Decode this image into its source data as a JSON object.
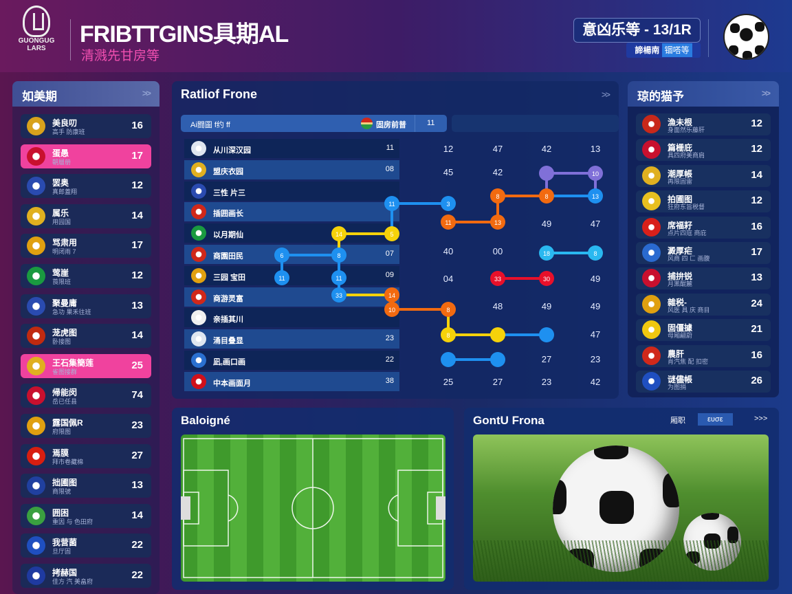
{
  "header": {
    "logo_text": [
      "GUONGUG",
      "LARS"
    ],
    "title": "FRIBTTGINS具期AL",
    "subtitle": "清溅先甘房等",
    "match_label": "意凶乐等 - 13/1R",
    "match_sub_a": "諦楊南",
    "match_sub_b": "锢嗒等",
    "ball_icon": "soccer-ball-icon"
  },
  "left_panel": {
    "title": "如美期",
    "items": [
      {
        "name": "美良叨",
        "sub": "高手 防康班",
        "value": "16",
        "flag": "#d8a21c",
        "hl": false
      },
      {
        "name": "蛋愚",
        "sub": "朝層册",
        "value": "17",
        "flag": "#c8102e",
        "hl": true
      },
      {
        "name": "罢奥",
        "sub": "真郎蓋翔",
        "value": "12",
        "flag": "#2a4bb0",
        "hl": false
      },
      {
        "name": "属乐",
        "sub": "用园国",
        "value": "14",
        "flag": "#e0b020",
        "hl": false
      },
      {
        "name": "骂肃用",
        "sub": "明闭雨 7",
        "value": "17",
        "flag": "#e0a010",
        "hl": false
      },
      {
        "name": "莺崖",
        "sub": "莨限班",
        "value": "12",
        "flag": "#1a9a40",
        "hl": false
      },
      {
        "name": "聚曼庸",
        "sub": "急功 果禾往班",
        "value": "13",
        "flag": "#2a4bb0",
        "hl": false
      },
      {
        "name": "茏虎图",
        "sub": "卧接图",
        "value": "14",
        "flag": "#c02a10",
        "hl": false
      },
      {
        "name": "王石集簡莲",
        "sub": "雀图接群",
        "value": "25",
        "flag": "#e0b020",
        "hl": true
      },
      {
        "name": "帰能闵",
        "sub": "岳已任县",
        "value": "74",
        "flag": "#c8102e",
        "hl": false
      },
      {
        "name": "露国佩R",
        "sub": "府限图",
        "value": "23",
        "flag": "#e0a010",
        "hl": false
      },
      {
        "name": "焉膜",
        "sub": "拜市卷藏棉",
        "value": "27",
        "flag": "#d81e10",
        "hl": false
      },
      {
        "name": "拙圃图",
        "sub": "商限號",
        "value": "13",
        "flag": "#2040a0",
        "hl": false
      },
      {
        "name": "囲困",
        "sub": "重因 与 色田府",
        "value": "14",
        "flag": "#3aa040",
        "hl": false
      },
      {
        "name": "我营菌",
        "sub": "旦厅固",
        "value": "22",
        "flag": "#1f4fc0",
        "hl": false
      },
      {
        "name": "拷赫国",
        "sub": "佳方 汽 美畠府",
        "value": "22",
        "flag": "#1f3aa0",
        "hl": false
      }
    ]
  },
  "bracket": {
    "title": "Ratliof Frone",
    "bar_label": "Ai闘圖 f约 ff",
    "bar_team": "固房前普",
    "bar_value": "11",
    "teams": [
      {
        "name": "从川深汉园",
        "value": "11",
        "flag": "#dfe6f0"
      },
      {
        "name": "盟庆衣园",
        "value": "08",
        "flag": "#e0b020"
      },
      {
        "name": "三性 片三",
        "value": "",
        "flag": "#2a4bb0"
      },
      {
        "name": "插囲画长",
        "value": "",
        "flag": "#d0281a"
      },
      {
        "name": "以月期仙",
        "value": "",
        "flag": "#1a9a40"
      },
      {
        "name": "商園田民",
        "value": "07",
        "flag": "#d0281a"
      },
      {
        "name": "三园 宝田",
        "value": "09",
        "flag": "#e0a010"
      },
      {
        "name": "商游灵富",
        "value": "",
        "flag": "#d0281a"
      },
      {
        "name": "亲插其川",
        "value": "",
        "flag": "#f0f0f0"
      },
      {
        "name": "涌目叠显",
        "value": "23",
        "flag": "#dfe6f0"
      },
      {
        "name": "凪,画口画",
        "value": "22",
        "flag": "#2a70d0"
      },
      {
        "name": "中本画面月",
        "value": "38",
        "flag": "#d0101a"
      }
    ],
    "scores": [
      "12",
      "47",
      "42",
      "13",
      "45",
      "42",
      "49",
      "47",
      "40",
      "00",
      "04",
      "49",
      "48",
      "49",
      "49",
      "47",
      "27",
      "23",
      "25",
      "27",
      "23",
      "42"
    ],
    "nodes": [
      "10",
      "13",
      "8",
      "8",
      "11",
      "3",
      "11",
      "13",
      "14",
      "5",
      "6",
      "8",
      "18",
      "8",
      "11",
      "11",
      "33",
      "30",
      "33",
      "14",
      "10",
      "8",
      "8"
    ]
  },
  "bottom_left": {
    "title": "Baloigné"
  },
  "bottom_right": {
    "title": "GontU Frona",
    "ctrl_a": "厢职",
    "ctrl_b": "ευσε",
    "ctrl_next": ">>>"
  },
  "colors": {
    "accent": "#f0429e",
    "blue": "#1e90f0",
    "yellow": "#f5d20a",
    "orange": "#f26a10",
    "red": "#e8102a",
    "purple": "#8070d8",
    "cyan": "#2ab8f0"
  }
}
